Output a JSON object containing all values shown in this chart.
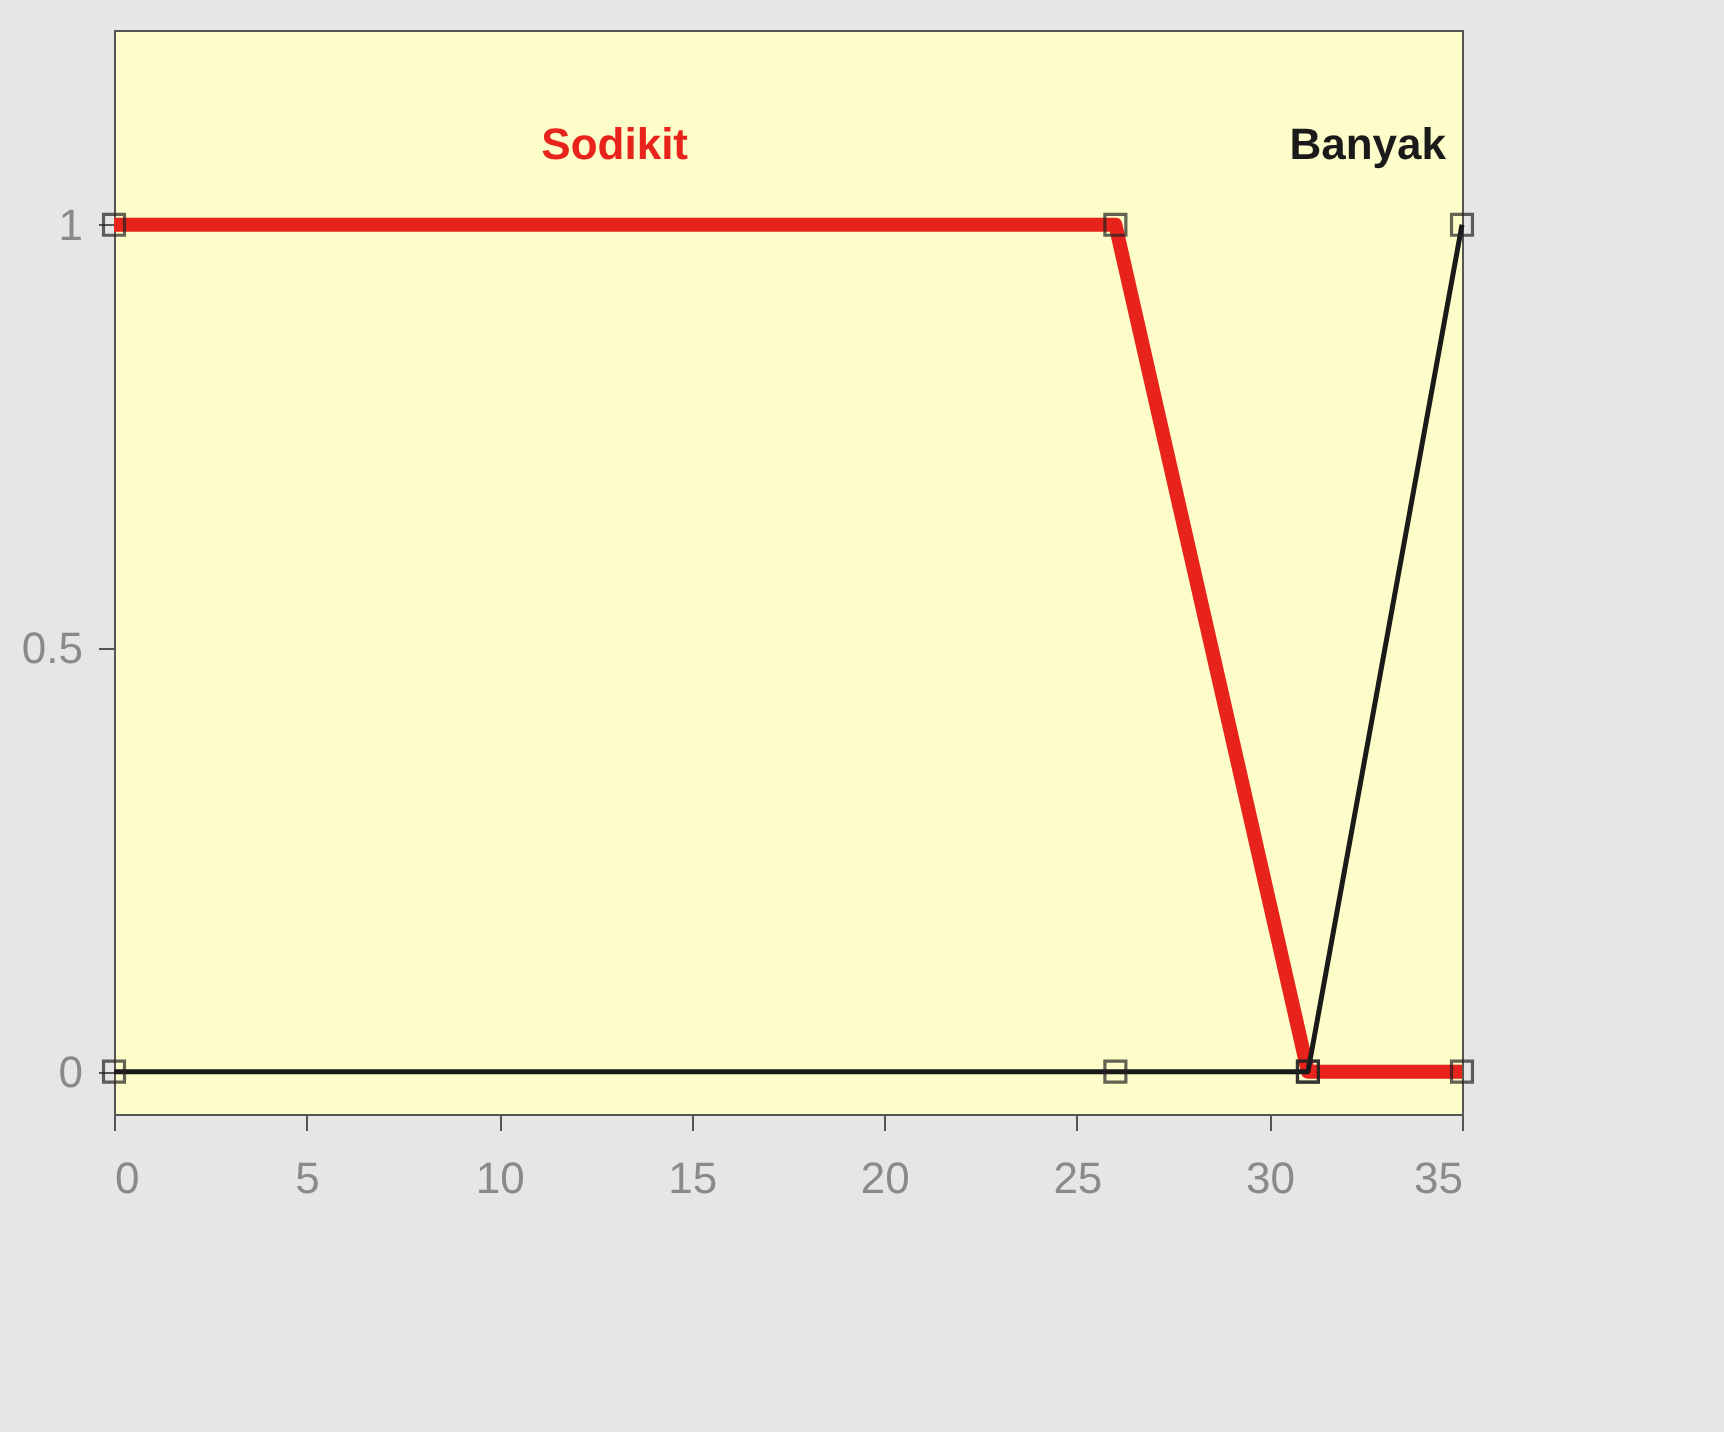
{
  "chart_data": {
    "type": "line",
    "x": [
      0,
      26,
      31,
      35
    ],
    "series": [
      {
        "name": "Sodikit",
        "color": "#e8231c",
        "values": [
          1,
          1,
          0,
          0
        ]
      },
      {
        "name": "Banyak",
        "color": "#1a1a1a",
        "values": [
          0,
          0,
          0,
          1
        ]
      }
    ],
    "xlim": [
      0,
      35
    ],
    "xticks": [
      0,
      5,
      10,
      15,
      20,
      25,
      30,
      35
    ],
    "ylim": [
      -0.05,
      1.23
    ],
    "yticks": [
      0,
      0.5,
      1
    ],
    "grid": false,
    "legend": false,
    "marker": "square",
    "line_style": "solid"
  }
}
